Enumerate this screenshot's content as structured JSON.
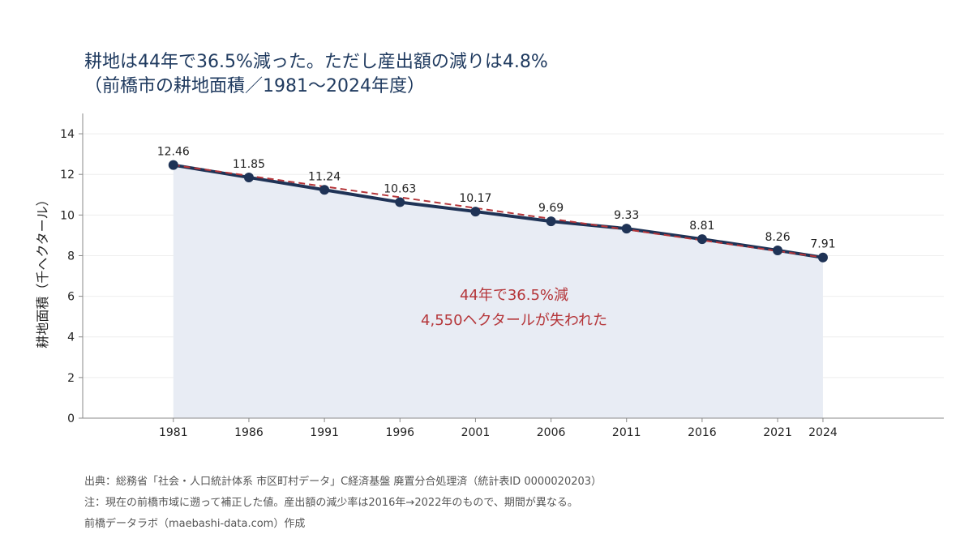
{
  "title": {
    "line1": "耕地は44年で36.5%減った。ただし産出額の減りは4.8%",
    "line2": "（前橋市の耕地面積／1981〜2024年度）"
  },
  "chart_data": {
    "type": "line",
    "x": [
      1981,
      1986,
      1991,
      1996,
      2001,
      2006,
      2011,
      2016,
      2021,
      2024
    ],
    "series": [
      {
        "values": [
          12.46,
          11.85,
          11.24,
          10.63,
          10.17,
          9.69,
          9.33,
          8.81,
          8.26,
          7.91
        ]
      }
    ],
    "data_labels": [
      "12.46",
      "11.85",
      "11.24",
      "10.63",
      "10.17",
      "9.69",
      "9.33",
      "8.81",
      "8.26",
      "7.91"
    ],
    "trend_line": {
      "from": [
        1981,
        12.46
      ],
      "to": [
        2024,
        7.91
      ],
      "style": "dashed",
      "color": "#b5363a"
    },
    "ylabel": "耕地面積（千ヘクタール）",
    "xlabel": "",
    "ylim": [
      0,
      15
    ],
    "xlim": [
      1975,
      2032
    ],
    "yticks": [
      0,
      2,
      4,
      6,
      8,
      10,
      12,
      14
    ],
    "xticks": [
      1981,
      1986,
      1991,
      1996,
      2001,
      2006,
      2011,
      2016,
      2021,
      2024
    ],
    "grid": true,
    "area_fill": true,
    "annotation": {
      "line1": "44年で36.5%減",
      "line2": "4,550ヘクタールが失われた"
    },
    "colors": {
      "line": "#1f3356",
      "area": "#e8ecf4",
      "trend": "#b5363a",
      "annotation": "#b5363a"
    }
  },
  "footer": {
    "source": "出典：総務省「社会・人口統計体系 市区町村データ」C経済基盤 廃置分合処理済（統計表ID 0000020203）",
    "note": "注：現在の前橋市域に遡って補正した値。産出額の減少率は2016年→2022年のもので、期間が異なる。",
    "credit": "前橋データラボ（maebashi-data.com）作成"
  }
}
